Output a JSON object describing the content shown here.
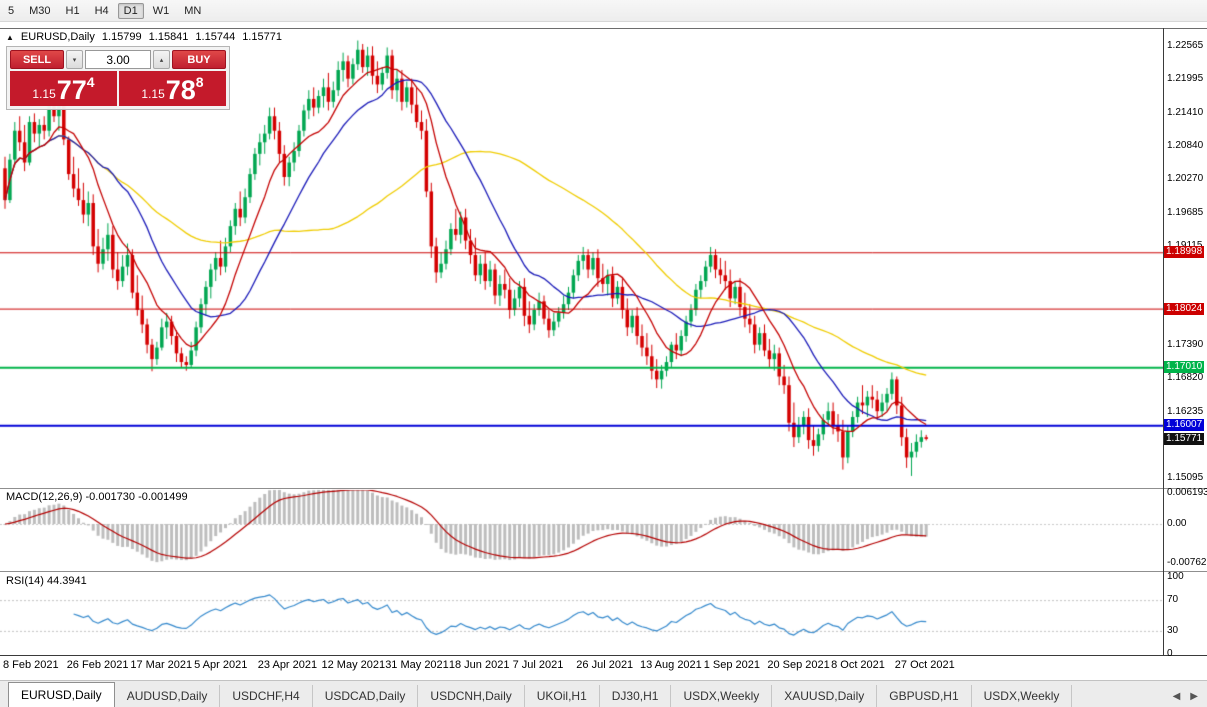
{
  "toolbar": {
    "timeframes": [
      "5",
      "M30",
      "H1",
      "H4",
      "D1",
      "W1",
      "MN"
    ],
    "active": "D1"
  },
  "icons": {
    "collapse": "▲",
    "dropdown": "▾",
    "spinner_up": "▴",
    "tab_prev": "◀",
    "tab_next": "▶"
  },
  "chart": {
    "symbol_label": "EURUSD,Daily",
    "ohlc": {
      "open": "1.15799",
      "high": "1.15841",
      "low": "1.15744",
      "close": "1.15771"
    },
    "trade_panel": {
      "sell_label": "SELL",
      "buy_label": "BUY",
      "volume": "3.00",
      "panel_red": "#C41A2B",
      "bid": {
        "prefix": "1.15",
        "big": "77",
        "sup": "4"
      },
      "ask": {
        "prefix": "1.15",
        "big": "78",
        "sup": "8"
      }
    },
    "price_axis": {
      "ticks": [
        "1.22565",
        "1.21995",
        "1.21410",
        "1.20840",
        "1.20270",
        "1.19685",
        "1.19115",
        "1.17390",
        "1.16820",
        "1.16235",
        "1.15095"
      ]
    },
    "levels": [
      {
        "label": "1.18998",
        "value": 1.18998,
        "color": "#CC0000",
        "thickness": 1
      },
      {
        "label": "1.18024",
        "value": 1.18024,
        "color": "#CC0000",
        "thickness": 1
      },
      {
        "label": "1.17010",
        "value": 1.1701,
        "color": "#00B44A",
        "thickness": 2
      },
      {
        "label": "1.16007",
        "value": 1.16007,
        "color": "#0000D8",
        "thickness": 2
      }
    ],
    "current_price": {
      "label": "1.15771",
      "value": 1.15771,
      "bg": "#111111"
    },
    "candle_up_color": "#00A651",
    "candle_down_color": "#D40000",
    "moving_averages": [
      {
        "period": 55,
        "color": "#EFCC00"
      },
      {
        "period": 21,
        "color": "#1A1AB8"
      },
      {
        "period": 10,
        "color": "#C40000"
      }
    ],
    "dates": [
      "8 Feb 2021",
      "26 Feb 2021",
      "17 Mar 2021",
      "5 Apr 2021",
      "23 Apr 2021",
      "12 May 2021",
      "31 May 2021",
      "18 Jun 2021",
      "7 Jul 2021",
      "26 Jul 2021",
      "13 Aug 2021",
      "1 Sep 2021",
      "20 Sep 2021",
      "8 Oct 2021",
      "27 Oct 2021"
    ],
    "candles": [
      [
        1.2045,
        1.2065,
        1.1975,
        1.199
      ],
      [
        1.199,
        1.207,
        1.1985,
        1.206
      ],
      [
        1.206,
        1.2125,
        1.205,
        1.211
      ],
      [
        1.211,
        1.2135,
        1.2075,
        1.209
      ],
      [
        1.209,
        1.212,
        1.204,
        1.2055
      ],
      [
        1.2055,
        1.2135,
        1.205,
        1.2125
      ],
      [
        1.2125,
        1.214,
        1.209,
        1.2105
      ],
      [
        1.2105,
        1.213,
        1.208,
        1.212
      ],
      [
        1.212,
        1.2135,
        1.2095,
        1.211
      ],
      [
        1.211,
        1.217,
        1.21,
        1.216
      ],
      [
        1.216,
        1.2175,
        1.2125,
        1.2135
      ],
      [
        1.2135,
        1.2165,
        1.211,
        1.2155
      ],
      [
        1.2155,
        1.217,
        1.2085,
        1.2095
      ],
      [
        1.2095,
        1.21,
        1.2025,
        1.2035
      ],
      [
        1.2035,
        1.2065,
        1.1995,
        1.201
      ],
      [
        1.201,
        1.2045,
        1.198,
        1.199
      ],
      [
        1.199,
        1.202,
        1.195,
        1.1965
      ],
      [
        1.1965,
        1.2005,
        1.1945,
        1.1985
      ],
      [
        1.1985,
        1.2,
        1.1895,
        1.191
      ],
      [
        1.191,
        1.194,
        1.1865,
        1.188
      ],
      [
        1.188,
        1.1925,
        1.187,
        1.1905
      ],
      [
        1.1905,
        1.195,
        1.1885,
        1.193
      ],
      [
        1.193,
        1.1945,
        1.1855,
        1.187
      ],
      [
        1.187,
        1.19,
        1.1835,
        1.185
      ],
      [
        1.185,
        1.1895,
        1.184,
        1.1875
      ],
      [
        1.1875,
        1.1915,
        1.186,
        1.1895
      ],
      [
        1.1895,
        1.1905,
        1.182,
        1.183
      ],
      [
        1.183,
        1.186,
        1.179,
        1.18
      ],
      [
        1.18,
        1.1825,
        1.176,
        1.1775
      ],
      [
        1.1775,
        1.1785,
        1.1725,
        1.174
      ],
      [
        1.174,
        1.175,
        1.1694,
        1.1715
      ],
      [
        1.1715,
        1.1745,
        1.1705,
        1.1735
      ],
      [
        1.1735,
        1.1785,
        1.173,
        1.177
      ],
      [
        1.177,
        1.1795,
        1.175,
        1.178
      ],
      [
        1.178,
        1.179,
        1.174,
        1.1755
      ],
      [
        1.1755,
        1.1765,
        1.171,
        1.1725
      ],
      [
        1.1725,
        1.1735,
        1.17,
        1.171
      ],
      [
        1.171,
        1.172,
        1.1695,
        1.1705
      ],
      [
        1.1705,
        1.1745,
        1.17,
        1.173
      ],
      [
        1.173,
        1.178,
        1.172,
        1.177
      ],
      [
        1.177,
        1.182,
        1.176,
        1.181
      ],
      [
        1.181,
        1.185,
        1.179,
        1.184
      ],
      [
        1.184,
        1.188,
        1.182,
        1.187
      ],
      [
        1.187,
        1.19,
        1.185,
        1.189
      ],
      [
        1.189,
        1.192,
        1.186,
        1.1875
      ],
      [
        1.1875,
        1.1925,
        1.1865,
        1.191
      ],
      [
        1.191,
        1.1955,
        1.19,
        1.1945
      ],
      [
        1.1945,
        1.1985,
        1.193,
        1.1975
      ],
      [
        1.1975,
        1.2005,
        1.1945,
        1.196
      ],
      [
        1.196,
        1.201,
        1.195,
        1.1995
      ],
      [
        1.1995,
        1.2045,
        1.1985,
        1.2035
      ],
      [
        1.2035,
        1.208,
        1.2025,
        1.207
      ],
      [
        1.207,
        1.2105,
        1.205,
        1.209
      ],
      [
        1.209,
        1.212,
        1.207,
        1.2105
      ],
      [
        1.2105,
        1.215,
        1.2095,
        1.2135
      ],
      [
        1.2135,
        1.215,
        1.2095,
        1.211
      ],
      [
        1.211,
        1.2125,
        1.2055,
        1.207
      ],
      [
        1.207,
        1.2085,
        1.2015,
        1.203
      ],
      [
        1.203,
        1.2065,
        1.2014,
        1.2055
      ],
      [
        1.2055,
        1.209,
        1.204,
        1.2075
      ],
      [
        1.2075,
        1.212,
        1.2065,
        1.211
      ],
      [
        1.211,
        1.2155,
        1.21,
        1.2145
      ],
      [
        1.2145,
        1.218,
        1.213,
        1.2165
      ],
      [
        1.2165,
        1.2185,
        1.2135,
        1.215
      ],
      [
        1.215,
        1.218,
        1.214,
        1.217
      ],
      [
        1.217,
        1.22,
        1.215,
        1.2185
      ],
      [
        1.2185,
        1.221,
        1.2145,
        1.216
      ],
      [
        1.216,
        1.2195,
        1.215,
        1.218
      ],
      [
        1.218,
        1.223,
        1.217,
        1.2215
      ],
      [
        1.2215,
        1.2245,
        1.2195,
        1.223
      ],
      [
        1.223,
        1.224,
        1.2185,
        1.22
      ],
      [
        1.22,
        1.2235,
        1.219,
        1.2225
      ],
      [
        1.2225,
        1.2266,
        1.2215,
        1.225
      ],
      [
        1.225,
        1.226,
        1.221,
        1.222
      ],
      [
        1.222,
        1.2255,
        1.2205,
        1.224
      ],
      [
        1.224,
        1.2256,
        1.219,
        1.2205
      ],
      [
        1.2205,
        1.223,
        1.2175,
        1.219
      ],
      [
        1.219,
        1.222,
        1.218,
        1.221
      ],
      [
        1.221,
        1.2254,
        1.22,
        1.224
      ],
      [
        1.224,
        1.225,
        1.2165,
        1.218
      ],
      [
        1.218,
        1.2215,
        1.216,
        1.22
      ],
      [
        1.22,
        1.2215,
        1.2145,
        1.216
      ],
      [
        1.216,
        1.2195,
        1.215,
        1.2185
      ],
      [
        1.2185,
        1.22,
        1.214,
        1.2155
      ],
      [
        1.2155,
        1.2185,
        1.2115,
        1.2125
      ],
      [
        1.2125,
        1.2145,
        1.2095,
        1.211
      ],
      [
        1.211,
        1.213,
        1.1995,
        1.2005
      ],
      [
        1.2005,
        1.202,
        1.189,
        1.191
      ],
      [
        1.191,
        1.1925,
        1.1847,
        1.1865
      ],
      [
        1.1865,
        1.19,
        1.1855,
        1.188
      ],
      [
        1.188,
        1.192,
        1.187,
        1.1905
      ],
      [
        1.1905,
        1.195,
        1.1895,
        1.194
      ],
      [
        1.194,
        1.1975,
        1.192,
        1.193
      ],
      [
        1.193,
        1.197,
        1.1915,
        1.196
      ],
      [
        1.196,
        1.1975,
        1.1905,
        1.192
      ],
      [
        1.192,
        1.194,
        1.188,
        1.1895
      ],
      [
        1.1895,
        1.1925,
        1.185,
        1.186
      ],
      [
        1.186,
        1.1895,
        1.1845,
        1.188
      ],
      [
        1.188,
        1.19,
        1.1835,
        1.185
      ],
      [
        1.185,
        1.1885,
        1.184,
        1.187
      ],
      [
        1.187,
        1.188,
        1.181,
        1.1825
      ],
      [
        1.1825,
        1.186,
        1.1807,
        1.1845
      ],
      [
        1.1845,
        1.187,
        1.182,
        1.1835
      ],
      [
        1.1835,
        1.1855,
        1.1785,
        1.18
      ],
      [
        1.18,
        1.1835,
        1.179,
        1.182
      ],
      [
        1.182,
        1.185,
        1.1805,
        1.184
      ],
      [
        1.184,
        1.1855,
        1.1772,
        1.179
      ],
      [
        1.179,
        1.1815,
        1.176,
        1.1775
      ],
      [
        1.1775,
        1.181,
        1.1765,
        1.18
      ],
      [
        1.18,
        1.183,
        1.179,
        1.1815
      ],
      [
        1.1815,
        1.1825,
        1.1775,
        1.1785
      ],
      [
        1.1785,
        1.18,
        1.1752,
        1.1765
      ],
      [
        1.1765,
        1.1795,
        1.1755,
        1.178
      ],
      [
        1.178,
        1.1805,
        1.177,
        1.1795
      ],
      [
        1.1795,
        1.1825,
        1.1785,
        1.181
      ],
      [
        1.181,
        1.184,
        1.18,
        1.183
      ],
      [
        1.183,
        1.187,
        1.182,
        1.186
      ],
      [
        1.186,
        1.1895,
        1.185,
        1.1885
      ],
      [
        1.1885,
        1.1909,
        1.187,
        1.1895
      ],
      [
        1.1895,
        1.1905,
        1.1855,
        1.187
      ],
      [
        1.187,
        1.19,
        1.186,
        1.189
      ],
      [
        1.189,
        1.1905,
        1.184,
        1.1855
      ],
      [
        1.1855,
        1.188,
        1.183,
        1.1845
      ],
      [
        1.1845,
        1.187,
        1.1825,
        1.186
      ],
      [
        1.186,
        1.1875,
        1.1805,
        1.182
      ],
      [
        1.182,
        1.185,
        1.181,
        1.184
      ],
      [
        1.184,
        1.1855,
        1.1785,
        1.18
      ],
      [
        1.18,
        1.182,
        1.1755,
        1.177
      ],
      [
        1.177,
        1.18,
        1.176,
        1.179
      ],
      [
        1.179,
        1.1805,
        1.174,
        1.1755
      ],
      [
        1.1755,
        1.1775,
        1.172,
        1.1735
      ],
      [
        1.1735,
        1.176,
        1.1705,
        1.172
      ],
      [
        1.172,
        1.174,
        1.168,
        1.1695
      ],
      [
        1.1695,
        1.1715,
        1.1665,
        1.168
      ],
      [
        1.168,
        1.1705,
        1.1664,
        1.1695
      ],
      [
        1.1695,
        1.172,
        1.1685,
        1.171
      ],
      [
        1.171,
        1.1745,
        1.17,
        1.174
      ],
      [
        1.174,
        1.176,
        1.1715,
        1.173
      ],
      [
        1.173,
        1.1765,
        1.172,
        1.1755
      ],
      [
        1.1755,
        1.179,
        1.1745,
        1.178
      ],
      [
        1.178,
        1.181,
        1.177,
        1.18
      ],
      [
        1.18,
        1.1845,
        1.179,
        1.1835
      ],
      [
        1.1835,
        1.186,
        1.182,
        1.185
      ],
      [
        1.185,
        1.1885,
        1.184,
        1.1875
      ],
      [
        1.1875,
        1.1909,
        1.1865,
        1.1895
      ],
      [
        1.1895,
        1.1905,
        1.1855,
        1.187
      ],
      [
        1.187,
        1.189,
        1.1845,
        1.186
      ],
      [
        1.186,
        1.1885,
        1.1835,
        1.185
      ],
      [
        1.185,
        1.187,
        1.1805,
        1.182
      ],
      [
        1.182,
        1.185,
        1.181,
        1.184
      ],
      [
        1.184,
        1.1855,
        1.179,
        1.1805
      ],
      [
        1.1805,
        1.183,
        1.177,
        1.1785
      ],
      [
        1.1785,
        1.181,
        1.176,
        1.1775
      ],
      [
        1.1775,
        1.179,
        1.1725,
        1.174
      ],
      [
        1.174,
        1.177,
        1.173,
        1.176
      ],
      [
        1.176,
        1.1775,
        1.172,
        1.173
      ],
      [
        1.173,
        1.175,
        1.17,
        1.1715
      ],
      [
        1.1715,
        1.174,
        1.1695,
        1.1725
      ],
      [
        1.1725,
        1.1735,
        1.167,
        1.1685
      ],
      [
        1.1685,
        1.1705,
        1.1655,
        1.167
      ],
      [
        1.167,
        1.1685,
        1.159,
        1.1605
      ],
      [
        1.1605,
        1.164,
        1.1563,
        1.158
      ],
      [
        1.158,
        1.1615,
        1.157,
        1.16
      ],
      [
        1.16,
        1.1625,
        1.1585,
        1.1615
      ],
      [
        1.1615,
        1.163,
        1.156,
        1.1575
      ],
      [
        1.1575,
        1.16,
        1.1548,
        1.1565
      ],
      [
        1.1565,
        1.1595,
        1.1555,
        1.1585
      ],
      [
        1.1585,
        1.162,
        1.1575,
        1.161
      ],
      [
        1.161,
        1.164,
        1.16,
        1.1625
      ],
      [
        1.1625,
        1.164,
        1.1585,
        1.16
      ],
      [
        1.16,
        1.162,
        1.1572,
        1.159
      ],
      [
        1.159,
        1.161,
        1.1524,
        1.1545
      ],
      [
        1.1545,
        1.16,
        1.1535,
        1.159
      ],
      [
        1.159,
        1.1625,
        1.158,
        1.1615
      ],
      [
        1.1615,
        1.165,
        1.1605,
        1.164
      ],
      [
        1.164,
        1.167,
        1.162,
        1.1635
      ],
      [
        1.1635,
        1.166,
        1.1615,
        1.165
      ],
      [
        1.165,
        1.167,
        1.163,
        1.1645
      ],
      [
        1.1645,
        1.166,
        1.161,
        1.1625
      ],
      [
        1.1625,
        1.1655,
        1.1615,
        1.164
      ],
      [
        1.164,
        1.1665,
        1.1625,
        1.1655
      ],
      [
        1.1655,
        1.1692,
        1.1645,
        1.168
      ],
      [
        1.168,
        1.1685,
        1.162,
        1.1635
      ],
      [
        1.1635,
        1.165,
        1.1565,
        1.158
      ],
      [
        1.158,
        1.1595,
        1.1527,
        1.1545
      ],
      [
        1.1545,
        1.157,
        1.1513,
        1.1555
      ],
      [
        1.1555,
        1.1585,
        1.1545,
        1.1572
      ],
      [
        1.1572,
        1.1592,
        1.1562,
        1.158
      ],
      [
        1.158,
        1.15841,
        1.15744,
        1.15771
      ]
    ]
  },
  "indicators": {
    "macd": {
      "name": "MACD(12,26,9)",
      "values": "-0.001730 -0.001499",
      "axis": [
        "0.006193",
        "0.00",
        "-0.007621"
      ],
      "fast": 12,
      "slow": 26,
      "signal": 9,
      "histogram_color": "#BDBDBD",
      "signal_color": "#B40000"
    },
    "rsi": {
      "name": "RSI(14)",
      "value": "44.3941",
      "axis": [
        "100",
        "70",
        "30",
        "0"
      ],
      "period": 14,
      "line_color": "#3388CC",
      "levels": [
        70,
        30
      ]
    }
  },
  "tabs": {
    "items": [
      "EURUSD,Daily",
      "AUDUSD,Daily",
      "USDCHF,H4",
      "USDCAD,Daily",
      "USDCNH,Daily",
      "UKOil,H1",
      "DJ30,H1",
      "USDX,Weekly",
      "XAUUSD,Daily",
      "GBPUSD,H1",
      "USDX,Weekly"
    ],
    "active_index": 0
  }
}
